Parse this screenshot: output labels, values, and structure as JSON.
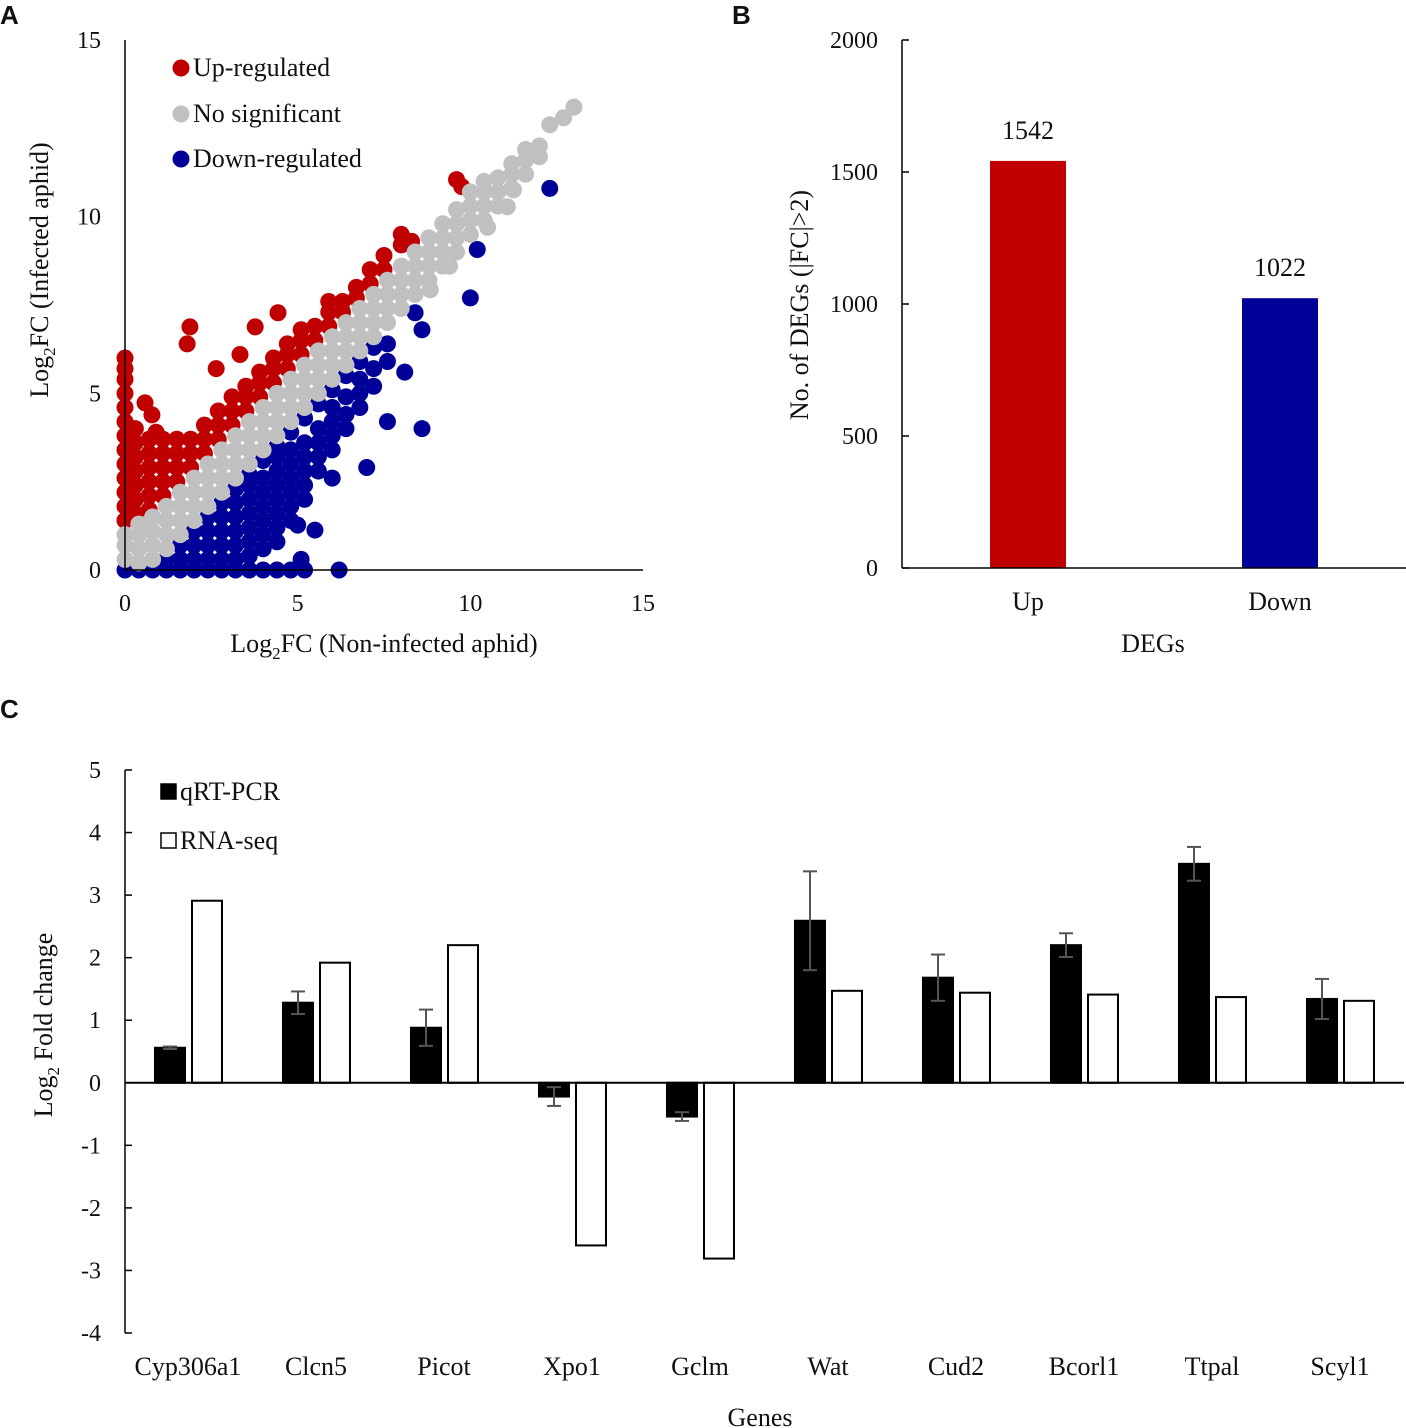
{
  "chart_data": [
    {
      "panel": "A",
      "type": "scatter",
      "xlabel": {
        "pre": "Log",
        "sub": "2",
        "post": "FC (Non-infected aphid)"
      },
      "ylabel": {
        "pre": "Log",
        "sub": "2",
        "post": "FC (Infected aphid)"
      },
      "xlim": [
        0,
        15
      ],
      "ylim": [
        0,
        15
      ],
      "xticks": [
        "0",
        "5",
        "10",
        "15"
      ],
      "yticks": [
        "0",
        "5",
        "10",
        "15"
      ],
      "legend_position": "top-left",
      "grid": false,
      "series": [
        {
          "name": "No significant",
          "color": "#c0c0c0",
          "columns": [
            [
              0,
              0.3,
              0.7,
              1.0
            ],
            [
              0.4,
              0.2,
              0.6,
              1.0,
              1.3
            ],
            [
              0.8,
              0.3,
              0.7,
              1.1,
              1.5
            ],
            [
              1.2,
              0.6,
              1.0,
              1.4,
              1.8
            ],
            [
              1.6,
              1.0,
              1.4,
              1.8,
              2.2
            ],
            [
              2.0,
              1.4,
              1.8,
              2.2,
              2.6
            ],
            [
              2.4,
              1.8,
              2.2,
              2.6,
              3.0
            ],
            [
              2.8,
              2.2,
              2.6,
              3.0,
              3.4
            ],
            [
              3.2,
              2.6,
              3.0,
              3.4,
              3.8
            ],
            [
              3.6,
              3.0,
              3.4,
              3.8,
              4.2
            ],
            [
              4.0,
              3.4,
              3.8,
              4.2,
              4.6
            ],
            [
              4.4,
              3.8,
              4.2,
              4.6,
              5.0
            ],
            [
              4.8,
              4.2,
              4.6,
              5.0,
              5.4
            ],
            [
              5.2,
              4.6,
              5.0,
              5.4,
              5.8
            ],
            [
              5.6,
              5.0,
              5.4,
              5.8,
              6.2
            ],
            [
              6.0,
              5.4,
              5.8,
              6.2,
              6.6
            ],
            [
              6.4,
              5.8,
              6.2,
              6.6,
              7.0
            ],
            [
              6.8,
              6.2,
              6.6,
              7.0,
              7.4
            ],
            [
              7.2,
              6.6,
              7.0,
              7.4,
              7.8
            ],
            [
              7.6,
              7.0,
              7.4,
              7.8,
              8.2
            ],
            [
              8.0,
              7.4,
              7.8,
              8.2,
              8.6
            ],
            [
              8.4,
              7.8,
              8.2,
              8.6,
              9.0
            ],
            [
              8.8,
              8.2,
              8.6,
              9.0,
              9.4
            ],
            [
              9.2,
              8.6,
              9.0,
              9.4,
              9.8
            ],
            [
              9.6,
              9.0,
              9.4,
              9.8,
              10.2
            ],
            [
              10.0,
              9.5,
              9.9,
              10.3,
              10.7
            ],
            [
              10.4,
              9.9,
              10.3,
              10.7,
              11.0
            ],
            [
              10.8,
              10.3,
              10.7,
              11.1
            ],
            [
              11.2,
              10.8,
              11.2,
              11.5
            ],
            [
              11.6,
              11.2,
              11.6,
              11.9
            ],
            [
              12.0,
              11.7,
              12.0
            ],
            [
              12.3,
              12.6
            ],
            [
              12.7,
              12.8
            ],
            [
              13.0,
              13.1
            ]
          ],
          "points": [
            [
              10.5,
              9.7
            ],
            [
              11.07,
              10.28
            ],
            [
              12.0,
              11.7
            ],
            [
              11.25,
              10.76
            ],
            [
              8.84,
              7.93
            ],
            [
              9.4,
              8.6
            ]
          ]
        },
        {
          "name": "Up-regulated",
          "color": "#c00000",
          "columns": [
            [
              0,
              1.4,
              1.8,
              2.2,
              2.6,
              3.0,
              3.4,
              3.8,
              4.2,
              4.6,
              5.0,
              5.4,
              5.7,
              6.0
            ],
            [
              0.3,
              1.6,
              2.0,
              2.4,
              2.8,
              3.2,
              3.6,
              4.0
            ],
            [
              0.7,
              1.7,
              2.1,
              2.5,
              2.9,
              3.3,
              3.7
            ],
            [
              1.1,
              2.1,
              2.5,
              2.9,
              3.3,
              3.7
            ],
            [
              1.5,
              2.5,
              2.9,
              3.3,
              3.7
            ],
            [
              1.9,
              2.9,
              3.3,
              3.7
            ],
            [
              2.3,
              3.3,
              3.7,
              4.1
            ],
            [
              2.7,
              3.7,
              4.1,
              4.5
            ],
            [
              3.1,
              4.1,
              4.5,
              4.9
            ],
            [
              3.5,
              4.5,
              4.9,
              5.2
            ],
            [
              3.9,
              4.9,
              5.3,
              5.6
            ],
            [
              4.3,
              5.3,
              5.7,
              6.0
            ],
            [
              4.7,
              5.7,
              6.1,
              6.4
            ],
            [
              5.1,
              6.1,
              6.5,
              6.8
            ],
            [
              5.5,
              6.5,
              6.9
            ],
            [
              5.9,
              6.9,
              7.3
            ],
            [
              6.3,
              7.3,
              7.6
            ],
            [
              6.7,
              7.7,
              8.0
            ],
            [
              7.1,
              8.1,
              8.5
            ],
            [
              7.5,
              8.5,
              8.9
            ],
            [
              8.0,
              9.2,
              9.5
            ]
          ],
          "points": [
            [
              1.88,
              6.88
            ],
            [
              1.8,
              6.4
            ],
            [
              3.33,
              6.1
            ],
            [
              2.64,
              5.7
            ],
            [
              4.43,
              7.28
            ],
            [
              3.77,
              6.88
            ],
            [
              0.58,
              4.73
            ],
            [
              0.78,
              4.39
            ],
            [
              9.6,
              11.05
            ],
            [
              9.75,
              10.85
            ],
            [
              8.3,
              9.3
            ],
            [
              5.9,
              7.6
            ],
            [
              0.9,
              3.9
            ]
          ]
        },
        {
          "name": "Down-regulated",
          "color": "#000099",
          "columns": [
            [
              0,
              0
            ],
            [
              0.4,
              0
            ],
            [
              0.8,
              0
            ],
            [
              1.2,
              0,
              0.3
            ],
            [
              1.6,
              0,
              0.3,
              0.7
            ],
            [
              2.0,
              0,
              0.3,
              0.7,
              1.1
            ],
            [
              2.4,
              0,
              0.3,
              0.7,
              1.1,
              1.5
            ],
            [
              2.8,
              0,
              0.3,
              0.7,
              1.1,
              1.5,
              1.9
            ],
            [
              3.2,
              0,
              0.3,
              0.7,
              1.1,
              1.5,
              1.9,
              2.3
            ],
            [
              3.6,
              0,
              0.4,
              0.8,
              1.2,
              1.6,
              2.0,
              2.4,
              2.7
            ],
            [
              4.0,
              0,
              0.6,
              1.0,
              1.4,
              1.8,
              2.2,
              2.6,
              3.1
            ],
            [
              4.4,
              0,
              0.8,
              1.2,
              1.6,
              2.0,
              2.4,
              2.8,
              3.2,
              3.5
            ],
            [
              4.8,
              0,
              1.4,
              1.8,
              2.2,
              2.6,
              3.0,
              3.4,
              3.9
            ],
            [
              5.2,
              0,
              2.0,
              2.4,
              2.8,
              3.2,
              3.6,
              4.3
            ],
            [
              5.6,
              2.8,
              3.2,
              3.6,
              4.0,
              4.7
            ],
            [
              6.0,
              3.4,
              3.8,
              4.2,
              4.6,
              5.1
            ],
            [
              6.4,
              4.0,
              4.4,
              4.9,
              5.5
            ],
            [
              6.8,
              4.6,
              5.0,
              5.4,
              5.9
            ],
            [
              7.2,
              5.2,
              5.7,
              6.3
            ],
            [
              7.6,
              5.9,
              6.4
            ]
          ],
          "points": [
            [
              5.5,
              1.13
            ],
            [
              5.0,
              1.27
            ],
            [
              6.0,
              2.6
            ],
            [
              7.0,
              2.9
            ],
            [
              7.6,
              4.2
            ],
            [
              8.6,
              4.0
            ],
            [
              10.0,
              7.7
            ],
            [
              10.2,
              9.07
            ],
            [
              12.3,
              10.8
            ],
            [
              8.4,
              7.28
            ],
            [
              8.6,
              6.8
            ],
            [
              8.1,
              5.6
            ],
            [
              6.2,
              0
            ],
            [
              5.1,
              0.3
            ]
          ]
        }
      ]
    },
    {
      "panel": "B",
      "type": "bar",
      "xlabel": "DEGs",
      "ylabel": "No. of  DEGs (|FC|>2)",
      "ylim": [
        0,
        2000
      ],
      "yticks": [
        "0",
        "500",
        "1000",
        "1500",
        "2000"
      ],
      "categories": [
        "Up",
        "Down"
      ],
      "values": [
        1542,
        1022
      ],
      "data_labels": [
        "1542",
        "1022"
      ],
      "colors": [
        "#c00000",
        "#000099"
      ],
      "grid": false
    },
    {
      "panel": "C",
      "type": "bar",
      "xlabel": "Genes",
      "ylabel": {
        "pre": "Log",
        "sub": "2",
        "post": " Fold change"
      },
      "ylim": [
        -4,
        5
      ],
      "yticks": [
        "-4",
        "-3",
        "-2",
        "-1",
        "0",
        "1",
        "2",
        "3",
        "4",
        "5"
      ],
      "categories": [
        "Cyp306a1",
        "Clcn5",
        "Picot",
        "Xpo1",
        "Gclm",
        "Wat",
        "Cud2",
        "Bcorl1",
        "Ttpal",
        "Scyl1"
      ],
      "legend_position": "top-left",
      "grid": false,
      "series": [
        {
          "name": "qRT-PCR",
          "color": "#000000",
          "values": [
            0.56,
            1.28,
            0.88,
            -0.22,
            -0.54,
            2.59,
            1.68,
            2.2,
            3.5,
            1.34
          ],
          "errors": [
            0.02,
            0.18,
            0.29,
            0.15,
            0.07,
            0.79,
            0.37,
            0.19,
            0.27,
            0.32
          ]
        },
        {
          "name": "RNA-seq",
          "color": "#ffffff",
          "values": [
            2.91,
            1.92,
            2.2,
            -2.6,
            -2.81,
            1.47,
            1.44,
            1.41,
            1.37,
            1.31
          ]
        }
      ]
    }
  ],
  "panels": {
    "a": "A",
    "b": "B",
    "c": "C"
  }
}
